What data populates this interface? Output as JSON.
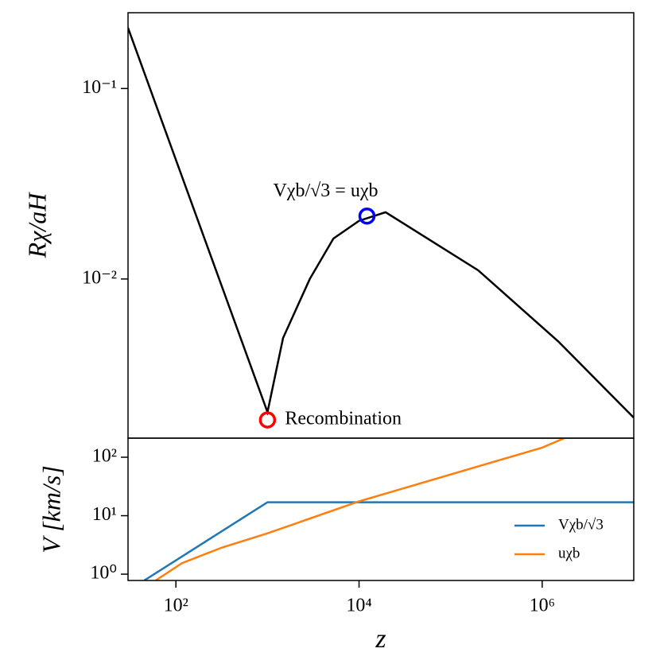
{
  "chart_data": [
    {
      "type": "line",
      "ylabel": "Rχ/aH",
      "xlim": [
        30,
        10000000
      ],
      "ylim": [
        0.00146,
        0.25
      ],
      "xscale": "log",
      "yscale": "log",
      "yticks": [
        {
          "value": 0.1,
          "label": "10⁻¹"
        },
        {
          "value": 0.01,
          "label": "10⁻²"
        }
      ],
      "series": [
        {
          "color": "#000000",
          "x": [
            30,
            1000,
            1480,
            2900,
            5250,
            10000,
            19500,
            200000,
            1500000,
            10000000
          ],
          "values": [
            0.208,
            0.002,
            0.0049,
            0.01,
            0.0163,
            0.0202,
            0.0224,
            0.0111,
            0.0047,
            0.00187
          ]
        }
      ],
      "markers": [
        {
          "label": "Recombination",
          "x": 1000,
          "y": 0.00182,
          "color": "#ff0000"
        },
        {
          "label": "Vχb/√3 = uχb",
          "x": 12200,
          "y": 0.0214,
          "color": "#0000ff"
        }
      ]
    },
    {
      "type": "line",
      "xlabel": "z",
      "ylabel": "V [km/s]",
      "xlim": [
        30,
        10000000
      ],
      "ylim": [
        0.78,
        212
      ],
      "xscale": "log",
      "yscale": "log",
      "xticks": [
        {
          "value": 100,
          "label": "10²"
        },
        {
          "value": 10000,
          "label": "10⁴"
        },
        {
          "value": 1000000,
          "label": "10⁶"
        }
      ],
      "yticks": [
        {
          "value": 1,
          "label": "10⁰"
        },
        {
          "value": 10,
          "label": "10¹"
        },
        {
          "value": 100,
          "label": "10²"
        }
      ],
      "legend": "lower right",
      "series": [
        {
          "name": "Vχb/√3",
          "color": "#1f77b4",
          "x": [
            45,
            1000,
            10000000
          ],
          "values": [
            0.78,
            17,
            17
          ]
        },
        {
          "name": "uχb",
          "color": "#ff7f0e",
          "x": [
            60,
            117,
            320,
            1000,
            10000,
            1000000,
            1750000
          ],
          "values": [
            0.78,
            1.55,
            2.86,
            5.0,
            17.6,
            146,
            212
          ]
        }
      ]
    }
  ]
}
